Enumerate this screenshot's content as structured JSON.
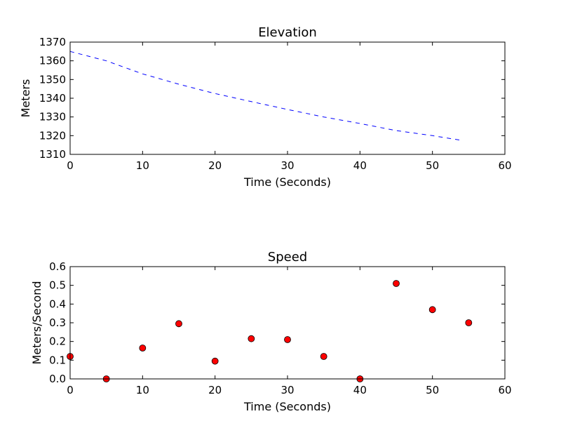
{
  "chart_data": [
    {
      "type": "line",
      "title": "Elevation",
      "xlabel": "Time (Seconds)",
      "ylabel": "Meters",
      "xlim": [
        0,
        60
      ],
      "ylim": [
        1310,
        1370
      ],
      "xticks": [
        0,
        10,
        20,
        30,
        40,
        50,
        60
      ],
      "yticks": [
        1310,
        1320,
        1330,
        1340,
        1350,
        1360,
        1370
      ],
      "grid": false,
      "line_style": "dashed",
      "color": "#0000ff",
      "x": [
        0,
        5,
        10,
        15,
        20,
        25,
        30,
        35,
        40,
        45,
        50,
        54
      ],
      "y": [
        1365.0,
        1360.0,
        1353.0,
        1347.5,
        1342.5,
        1338.2,
        1334.0,
        1330.0,
        1326.5,
        1322.7,
        1320.0,
        1317.5
      ]
    },
    {
      "type": "scatter",
      "title": "Speed",
      "xlabel": "Time (Seconds)",
      "ylabel": "Meters/Second",
      "xlim": [
        0,
        60
      ],
      "ylim": [
        0.0,
        0.6
      ],
      "xticks": [
        0,
        10,
        20,
        30,
        40,
        50,
        60
      ],
      "yticks": [
        "0.0",
        "0.1",
        "0.2",
        "0.3",
        "0.4",
        "0.5",
        "0.6"
      ],
      "grid": false,
      "marker_color": "#ff0000",
      "x": [
        0,
        5,
        10,
        15,
        20,
        25,
        30,
        35,
        40,
        45,
        50,
        55
      ],
      "y": [
        0.12,
        0.0,
        0.165,
        0.295,
        0.095,
        0.215,
        0.21,
        0.12,
        0.0,
        0.51,
        0.37,
        0.3
      ]
    }
  ]
}
